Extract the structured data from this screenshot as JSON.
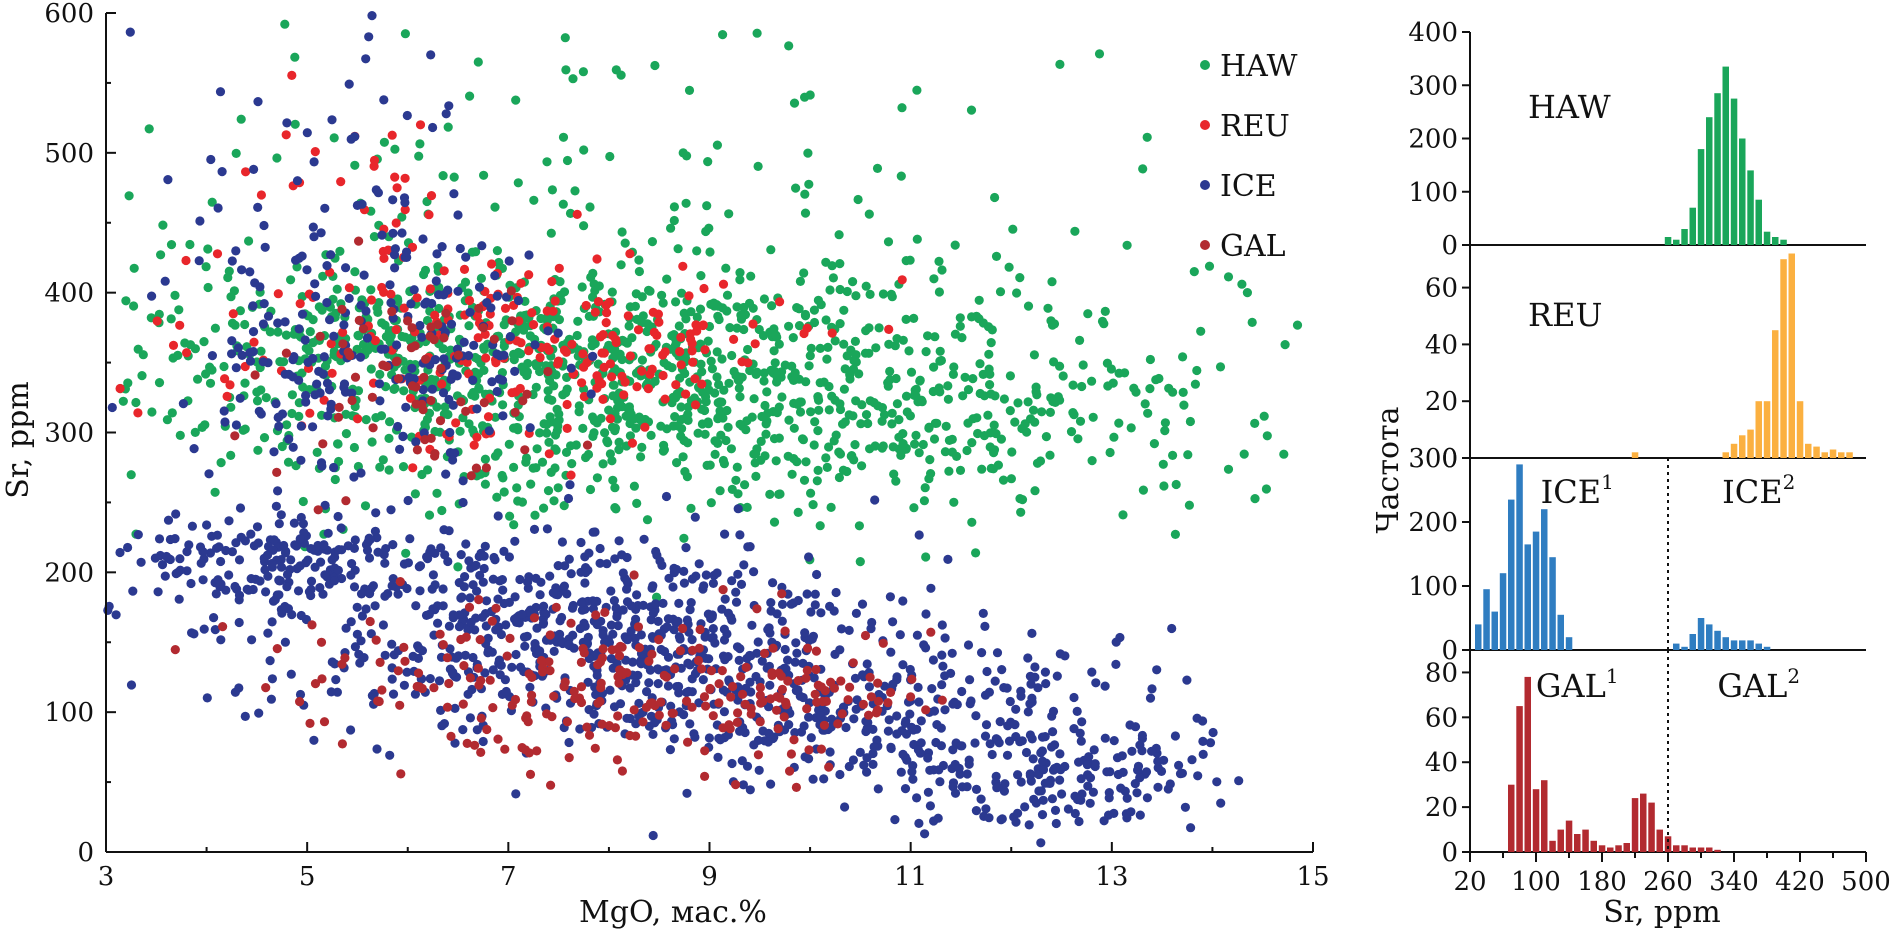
{
  "chart_data": [
    {
      "type": "scatter",
      "xlabel": "MgO, мас.%",
      "ylabel": "Sr, ppm",
      "xlim": [
        3,
        15
      ],
      "ylim": [
        0,
        600
      ],
      "xticks": [
        3,
        5,
        7,
        9,
        11,
        13,
        15
      ],
      "yticks": [
        0,
        100,
        200,
        300,
        400,
        500,
        600
      ],
      "grid": false,
      "legend_position": "top-right",
      "series": [
        {
          "name": "HAW",
          "color": "#1aa65a",
          "clusters": [
            {
              "cx": 9.0,
              "cy": 330,
              "sx": 2.6,
              "sy": 45,
              "n": 1100
            },
            {
              "cx": 6.0,
              "cy": 370,
              "sx": 1.4,
              "sy": 30,
              "n": 250
            },
            {
              "cx": 8.0,
              "cy": 470,
              "sx": 3.0,
              "sy": 70,
              "n": 140
            }
          ]
        },
        {
          "name": "REU",
          "color": "#e8262b",
          "clusters": [
            {
              "cx": 6.5,
              "cy": 360,
              "sx": 1.4,
              "sy": 35,
              "n": 160
            },
            {
              "cx": 8.3,
              "cy": 360,
              "sx": 0.7,
              "sy": 25,
              "n": 70
            },
            {
              "cx": 5.2,
              "cy": 480,
              "sx": 0.8,
              "sy": 40,
              "n": 25
            }
          ]
        },
        {
          "name": "ICE",
          "color": "#2b3990",
          "clusters": [
            {
              "cx": 4.8,
              "cy": 205,
              "sx": 0.9,
              "sy": 20,
              "n": 200
            },
            {
              "cx": 7.8,
              "cy": 155,
              "sx": 1.5,
              "sy": 35,
              "n": 650
            },
            {
              "cx": 10.6,
              "cy": 100,
              "sx": 1.3,
              "sy": 30,
              "n": 330
            },
            {
              "cx": 12.5,
              "cy": 50,
              "sx": 0.7,
              "sy": 20,
              "n": 150
            },
            {
              "cx": 5.7,
              "cy": 360,
              "sx": 0.9,
              "sy": 45,
              "n": 230
            },
            {
              "cx": 5.0,
              "cy": 490,
              "sx": 1.0,
              "sy": 50,
              "n": 40
            }
          ]
        },
        {
          "name": "GAL",
          "color": "#b22a30",
          "clusters": [
            {
              "cx": 7.9,
              "cy": 120,
              "sx": 1.5,
              "sy": 30,
              "n": 200
            },
            {
              "cx": 9.8,
              "cy": 115,
              "sx": 0.6,
              "sy": 12,
              "n": 60
            },
            {
              "cx": 6.1,
              "cy": 340,
              "sx": 0.8,
              "sy": 35,
              "n": 70
            }
          ]
        }
      ]
    },
    {
      "type": "bar",
      "name": "HAW",
      "ylim": [
        0,
        400
      ],
      "yticks": [
        0,
        100,
        200,
        300,
        400
      ],
      "color": "#1aa65a",
      "x": [
        170,
        180,
        190,
        200,
        210,
        220,
        230,
        240,
        250,
        260,
        270,
        280,
        290,
        300,
        310,
        320,
        330,
        340,
        350,
        360,
        370,
        380,
        390,
        400,
        410,
        420,
        430,
        440,
        450,
        460,
        470,
        480,
        490,
        500
      ],
      "values": [
        0,
        0,
        0,
        0,
        0,
        0,
        0,
        0,
        0,
        15,
        10,
        30,
        70,
        180,
        240,
        285,
        335,
        275,
        200,
        140,
        85,
        25,
        15,
        10,
        0,
        0,
        0,
        0,
        0,
        0,
        0,
        0,
        0,
        0
      ]
    },
    {
      "type": "bar",
      "name": "REU",
      "ylim": [
        0,
        75
      ],
      "yticks": [
        0,
        20,
        40,
        60
      ],
      "color": "#fbb040",
      "x": [
        220,
        230,
        240,
        250,
        260,
        270,
        280,
        290,
        300,
        310,
        320,
        330,
        340,
        350,
        360,
        370,
        380,
        390,
        400,
        410,
        420,
        430,
        440,
        450,
        460,
        470,
        480,
        490,
        500
      ],
      "values": [
        2,
        0,
        0,
        0,
        0,
        0,
        0,
        0,
        0,
        0,
        0,
        2,
        5,
        8,
        10,
        20,
        20,
        45,
        70,
        72,
        20,
        5,
        4,
        2,
        3,
        2,
        2,
        0,
        0
      ]
    },
    {
      "type": "bar",
      "name": "ICE",
      "labels": [
        "ICE1",
        "ICE2"
      ],
      "divider": 260,
      "ylim": [
        0,
        300
      ],
      "yticks": [
        0,
        100,
        200,
        300
      ],
      "color": "#2f7dc1",
      "x": [
        30,
        40,
        50,
        60,
        70,
        80,
        90,
        100,
        110,
        120,
        130,
        140,
        150,
        160,
        170,
        180,
        190,
        200,
        210,
        220,
        230,
        240,
        250,
        260,
        270,
        280,
        290,
        300,
        310,
        320,
        330,
        340,
        350,
        360,
        370,
        380,
        390,
        400,
        410,
        420,
        430,
        440,
        450
      ],
      "values": [
        40,
        95,
        60,
        120,
        235,
        290,
        165,
        185,
        220,
        145,
        55,
        20,
        0,
        0,
        0,
        0,
        0,
        0,
        0,
        0,
        0,
        0,
        0,
        0,
        10,
        5,
        25,
        50,
        40,
        30,
        20,
        15,
        15,
        15,
        10,
        5,
        0,
        0,
        0,
        0,
        0,
        0,
        0
      ]
    },
    {
      "type": "bar",
      "name": "GAL",
      "labels": [
        "GAL1",
        "GAL2"
      ],
      "divider": 260,
      "xlabel": "Sr, ppm",
      "ylim": [
        0,
        90
      ],
      "yticks": [
        0,
        20,
        40,
        60,
        80
      ],
      "xticks": [
        20,
        100,
        180,
        260,
        340,
        420,
        500
      ],
      "color": "#b22a30",
      "x": [
        70,
        80,
        90,
        100,
        110,
        120,
        130,
        140,
        150,
        160,
        170,
        180,
        190,
        200,
        210,
        220,
        230,
        240,
        250,
        260,
        270,
        280,
        290,
        300,
        310,
        320,
        330,
        340,
        350,
        360,
        370,
        380,
        390,
        400,
        410,
        420,
        430,
        440,
        450,
        460,
        470,
        480,
        490
      ],
      "values": [
        30,
        65,
        78,
        28,
        32,
        5,
        10,
        14,
        8,
        10,
        5,
        3,
        2,
        3,
        4,
        24,
        26,
        22,
        10,
        7,
        3,
        3,
        2,
        2,
        2,
        1,
        0,
        0,
        0,
        0,
        0,
        0,
        0,
        0,
        0,
        0,
        0,
        0,
        0,
        0,
        0,
        0,
        0
      ]
    }
  ],
  "shared_ylabel": "Частота"
}
